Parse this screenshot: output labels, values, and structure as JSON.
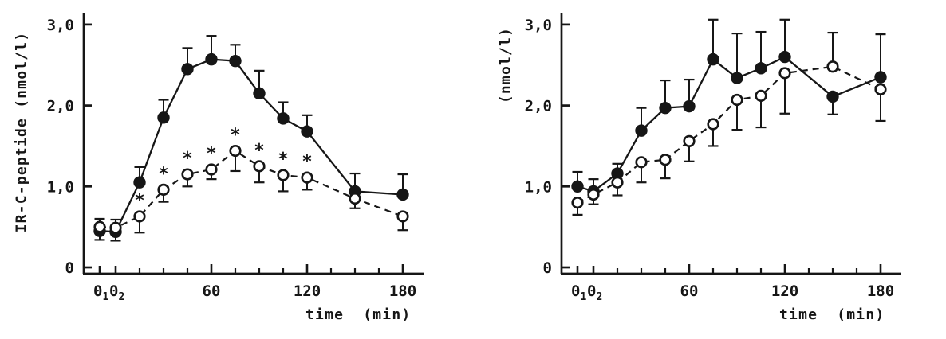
{
  "colors": {
    "ink": "#161616",
    "paper": "#ffffff"
  },
  "chart_data": [
    {
      "type": "line",
      "panel": "left",
      "title": "",
      "ylabel": "IR-C-peptide (nmol/l)",
      "xlabel": "time  (min)",
      "ylim": [
        0,
        3.2
      ],
      "xlim_minutes": [
        -20,
        195
      ],
      "grid": false,
      "legend": "none",
      "error_bars": true,
      "y_ticks": [
        {
          "v": 3,
          "label": "3,0"
        },
        {
          "v": 2,
          "label": "2,0"
        },
        {
          "v": 1,
          "label": "1,0"
        },
        {
          "v": 0,
          "label": "0"
        }
      ],
      "x_minutes": [
        -10,
        0,
        15,
        30,
        45,
        60,
        75,
        90,
        105,
        120,
        150,
        180
      ],
      "x_tick_labels": [
        {
          "t": -10,
          "base": "0",
          "sub": "1"
        },
        {
          "t": 0,
          "base": "0",
          "sub": "2"
        },
        {
          "t": 60,
          "base": "60"
        },
        {
          "t": 120,
          "base": "120"
        },
        {
          "t": 180,
          "base": "180"
        }
      ],
      "x_minor_ticks_minutes": [
        15,
        30,
        45,
        75,
        90,
        105,
        135,
        150,
        165
      ],
      "series": [
        {
          "name": "filled-circles-solid",
          "marker": "filled-circle",
          "line_style": "solid",
          "values": [
            0.45,
            0.44,
            1.05,
            1.85,
            2.45,
            2.57,
            2.55,
            2.15,
            1.84,
            1.68,
            0.94,
            0.9
          ],
          "err_up": [
            0,
            0,
            0.19,
            0.22,
            0.26,
            0.29,
            0.2,
            0.28,
            0.2,
            0.2,
            0.22,
            0.25
          ],
          "err_down": [
            0.11,
            0.11,
            0,
            0,
            0,
            0,
            0,
            0,
            0,
            0,
            0,
            0
          ]
        },
        {
          "name": "open-circles-dashed",
          "marker": "open-circle",
          "line_style": "dashed",
          "values": [
            0.5,
            0.49,
            0.63,
            0.96,
            1.15,
            1.21,
            1.44,
            1.25,
            1.14,
            1.11,
            0.85,
            0.63
          ],
          "err_up": [
            0.1,
            0.1,
            0,
            0,
            0,
            0,
            0,
            0,
            0,
            0,
            0,
            0
          ],
          "err_down": [
            0,
            0,
            0.2,
            0.15,
            0.15,
            0.12,
            0.25,
            0.2,
            0.2,
            0.15,
            0.12,
            0.17
          ]
        }
      ],
      "annotations": [
        {
          "t": 15,
          "symbol": "*"
        },
        {
          "t": 30,
          "symbol": "*"
        },
        {
          "t": 45,
          "symbol": "*"
        },
        {
          "t": 60,
          "symbol": "*"
        },
        {
          "t": 75,
          "symbol": "*"
        },
        {
          "t": 90,
          "symbol": "*"
        },
        {
          "t": 105,
          "symbol": "*"
        },
        {
          "t": 120,
          "symbol": "*"
        }
      ]
    },
    {
      "type": "line",
      "panel": "right",
      "title": "",
      "ylabel": "(nmol/l)",
      "xlabel": "time  (min)",
      "ylim": [
        0,
        3.2
      ],
      "xlim_minutes": [
        -20,
        195
      ],
      "grid": false,
      "legend": "none",
      "error_bars": true,
      "y_ticks": [
        {
          "v": 3,
          "label": "3,0"
        },
        {
          "v": 2,
          "label": "2,0"
        },
        {
          "v": 1,
          "label": "1,0"
        },
        {
          "v": 0,
          "label": "0"
        }
      ],
      "x_minutes": [
        -10,
        0,
        15,
        30,
        45,
        60,
        75,
        90,
        105,
        120,
        150,
        180
      ],
      "x_tick_labels": [
        {
          "t": -10,
          "base": "0",
          "sub": "1"
        },
        {
          "t": 0,
          "base": "0",
          "sub": "2"
        },
        {
          "t": 60,
          "base": "60"
        },
        {
          "t": 120,
          "base": "120"
        },
        {
          "t": 180,
          "base": "180"
        }
      ],
      "x_minor_ticks_minutes": [
        15,
        30,
        45,
        75,
        90,
        105,
        135,
        150,
        165
      ],
      "series": [
        {
          "name": "filled-circles-solid",
          "marker": "filled-circle",
          "line_style": "solid",
          "values": [
            1.0,
            0.94,
            1.16,
            1.69,
            1.97,
            1.99,
            2.57,
            2.34,
            2.46,
            2.6,
            2.11,
            2.35
          ],
          "err_up": [
            0.18,
            0.15,
            0.12,
            0.28,
            0.34,
            0.33,
            0.49,
            0.55,
            0.45,
            0.46,
            0,
            0.53
          ],
          "err_down": [
            0,
            0,
            0,
            0,
            0,
            0,
            0,
            0,
            0,
            0,
            0.22,
            0
          ]
        },
        {
          "name": "open-circles-dashed",
          "marker": "open-circle",
          "line_style": "dashed",
          "values": [
            0.8,
            0.9,
            1.05,
            1.3,
            1.33,
            1.56,
            1.77,
            2.07,
            2.12,
            2.4,
            2.48,
            2.2
          ],
          "err_up": [
            0,
            0,
            0,
            0,
            0,
            0,
            0,
            0,
            0,
            0,
            0.42,
            0
          ],
          "err_down": [
            0.15,
            0.12,
            0.16,
            0.25,
            0.23,
            0.25,
            0.27,
            0.37,
            0.39,
            0.5,
            0,
            0.39
          ]
        }
      ],
      "annotations": []
    }
  ]
}
